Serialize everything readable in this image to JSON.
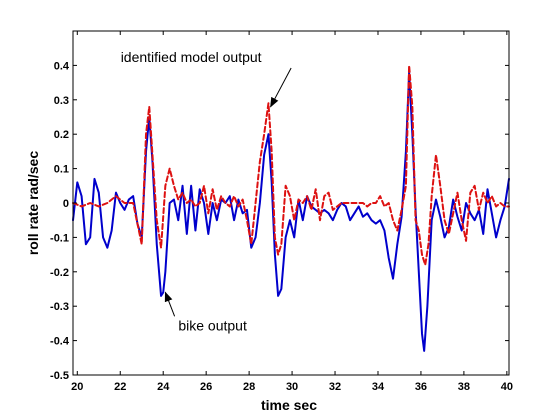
{
  "chart_data": {
    "type": "line",
    "title": "",
    "xlabel": "time sec",
    "ylabel": "roll rate rad/sec",
    "xlim": [
      19.8,
      40.1
    ],
    "ylim": [
      -0.5,
      0.5
    ],
    "x_ticks": [
      "20",
      "22",
      "24",
      "26",
      "28",
      "30",
      "32",
      "34",
      "36",
      "38",
      "40"
    ],
    "y_ticks": [
      "-0.5",
      "-0.4",
      "-0.3",
      "-0.2",
      "-0.1",
      "0",
      "0.1",
      "0.2",
      "0.3",
      "0.4"
    ],
    "grid": false,
    "annotations": [
      {
        "text": "identified model output",
        "x": 25.3,
        "y": 0.41,
        "arrow_to_x": 29.0,
        "arrow_to_y": 0.28
      },
      {
        "text": "bike output",
        "x": 26.3,
        "y": -0.37,
        "arrow_to_x": 24.1,
        "arrow_to_y": -0.26
      }
    ],
    "series": [
      {
        "style": "solid",
        "color": "#0000cc",
        "x": [
          19.8,
          20.0,
          20.2,
          20.4,
          20.6,
          20.8,
          21.0,
          21.2,
          21.4,
          21.6,
          21.8,
          22.0,
          22.2,
          22.4,
          22.6,
          22.8,
          23.0,
          23.2,
          23.35,
          23.5,
          23.7,
          23.9,
          24.0,
          24.1,
          24.3,
          24.5,
          24.7,
          24.9,
          25.1,
          25.3,
          25.5,
          25.7,
          25.9,
          26.1,
          26.3,
          26.5,
          26.7,
          26.9,
          27.1,
          27.3,
          27.5,
          27.7,
          27.9,
          28.1,
          28.3,
          28.5,
          28.7,
          28.9,
          29.05,
          29.2,
          29.35,
          29.5,
          29.7,
          29.9,
          30.1,
          30.3,
          30.5,
          30.7,
          30.9,
          31.1,
          31.3,
          31.5,
          31.7,
          31.9,
          32.1,
          32.3,
          32.5,
          32.7,
          32.9,
          33.1,
          33.3,
          33.5,
          33.7,
          33.9,
          34.1,
          34.3,
          34.5,
          34.7,
          34.9,
          35.1,
          35.3,
          35.45,
          35.6,
          35.75,
          35.9,
          36.05,
          36.15,
          36.3,
          36.5,
          36.7,
          36.9,
          37.1,
          37.3,
          37.5,
          37.7,
          37.9,
          38.1,
          38.3,
          38.5,
          38.7,
          38.9,
          39.1,
          39.3,
          39.5,
          39.7,
          39.9,
          40.1
        ],
        "y": [
          -0.05,
          0.06,
          0.02,
          -0.12,
          -0.1,
          0.07,
          0.03,
          -0.1,
          -0.13,
          -0.08,
          0.03,
          0.0,
          -0.02,
          0.01,
          0.02,
          -0.06,
          -0.1,
          0.15,
          0.25,
          0.12,
          -0.12,
          -0.27,
          -0.26,
          -0.2,
          0.0,
          0.01,
          -0.05,
          0.05,
          -0.09,
          0.05,
          -0.08,
          0.04,
          0.0,
          -0.09,
          0.0,
          -0.05,
          0.01,
          0.0,
          0.02,
          -0.05,
          0.01,
          -0.03,
          -0.02,
          -0.13,
          -0.1,
          0.0,
          0.14,
          0.2,
          0.06,
          -0.15,
          -0.27,
          -0.25,
          -0.1,
          -0.05,
          -0.1,
          0.01,
          -0.05,
          0.02,
          -0.01,
          -0.02,
          -0.03,
          -0.02,
          -0.03,
          -0.05,
          -0.02,
          0.0,
          -0.01,
          -0.05,
          -0.03,
          -0.01,
          -0.04,
          -0.03,
          -0.05,
          -0.06,
          -0.05,
          -0.08,
          -0.16,
          -0.22,
          -0.12,
          -0.04,
          0.15,
          0.38,
          0.2,
          -0.02,
          -0.2,
          -0.38,
          -0.43,
          -0.3,
          -0.05,
          0.01,
          -0.04,
          -0.1,
          -0.07,
          0.01,
          -0.04,
          -0.08,
          0.0,
          -0.03,
          -0.05,
          -0.02,
          -0.09,
          0.04,
          -0.03,
          -0.1,
          -0.05,
          -0.01,
          0.07
        ]
      },
      {
        "style": "dashed",
        "color": "#dd1111",
        "x": [
          19.8,
          20.2,
          20.6,
          21.0,
          21.4,
          21.8,
          22.2,
          22.6,
          23.0,
          23.2,
          23.35,
          23.5,
          23.7,
          23.9,
          24.1,
          24.3,
          24.5,
          24.7,
          24.9,
          25.1,
          25.3,
          25.5,
          25.7,
          25.9,
          26.1,
          26.3,
          26.5,
          26.7,
          26.9,
          27.1,
          27.3,
          27.5,
          27.7,
          27.9,
          28.1,
          28.3,
          28.5,
          28.7,
          28.9,
          29.05,
          29.2,
          29.35,
          29.5,
          29.7,
          29.9,
          30.1,
          30.3,
          30.5,
          30.7,
          30.9,
          31.1,
          31.3,
          31.5,
          31.7,
          31.9,
          32.1,
          32.3,
          32.5,
          32.7,
          32.9,
          33.1,
          33.3,
          33.5,
          33.7,
          33.9,
          34.1,
          34.3,
          34.5,
          34.7,
          34.9,
          35.1,
          35.3,
          35.45,
          35.6,
          35.75,
          35.9,
          36.05,
          36.2,
          36.35,
          36.5,
          36.7,
          36.9,
          37.1,
          37.3,
          37.5,
          37.7,
          37.9,
          38.1,
          38.3,
          38.5,
          38.7,
          38.9,
          39.1,
          39.3,
          39.5,
          39.7,
          39.9,
          40.1
        ],
        "y": [
          0.0,
          -0.01,
          0.0,
          -0.01,
          0.0,
          0.02,
          0.0,
          0.0,
          -0.12,
          0.2,
          0.28,
          0.14,
          -0.05,
          -0.13,
          0.05,
          0.1,
          0.05,
          0.01,
          0.03,
          0.0,
          0.01,
          -0.01,
          0.0,
          0.05,
          -0.03,
          0.04,
          -0.02,
          0.02,
          0.0,
          -0.01,
          0.02,
          -0.01,
          0.01,
          -0.05,
          -0.12,
          0.0,
          0.12,
          0.2,
          0.29,
          0.15,
          -0.1,
          -0.15,
          -0.12,
          0.05,
          0.02,
          -0.05,
          0.01,
          0.0,
          0.02,
          -0.02,
          0.04,
          -0.05,
          0.02,
          0.03,
          -0.02,
          -0.01,
          0.0,
          0.0,
          0.0,
          0.0,
          0.0,
          0.0,
          -0.01,
          0.0,
          0.0,
          0.02,
          -0.01,
          0.0,
          -0.05,
          -0.08,
          -0.02,
          0.05,
          0.4,
          0.28,
          -0.05,
          -0.08,
          -0.15,
          -0.18,
          -0.12,
          0.02,
          0.14,
          0.05,
          -0.05,
          -0.09,
          -0.03,
          0.03,
          -0.05,
          -0.11,
          0.03,
          0.05,
          -0.02,
          0.03,
          0.0,
          0.02,
          -0.01,
          0.0,
          -0.01,
          -0.01
        ]
      }
    ]
  }
}
